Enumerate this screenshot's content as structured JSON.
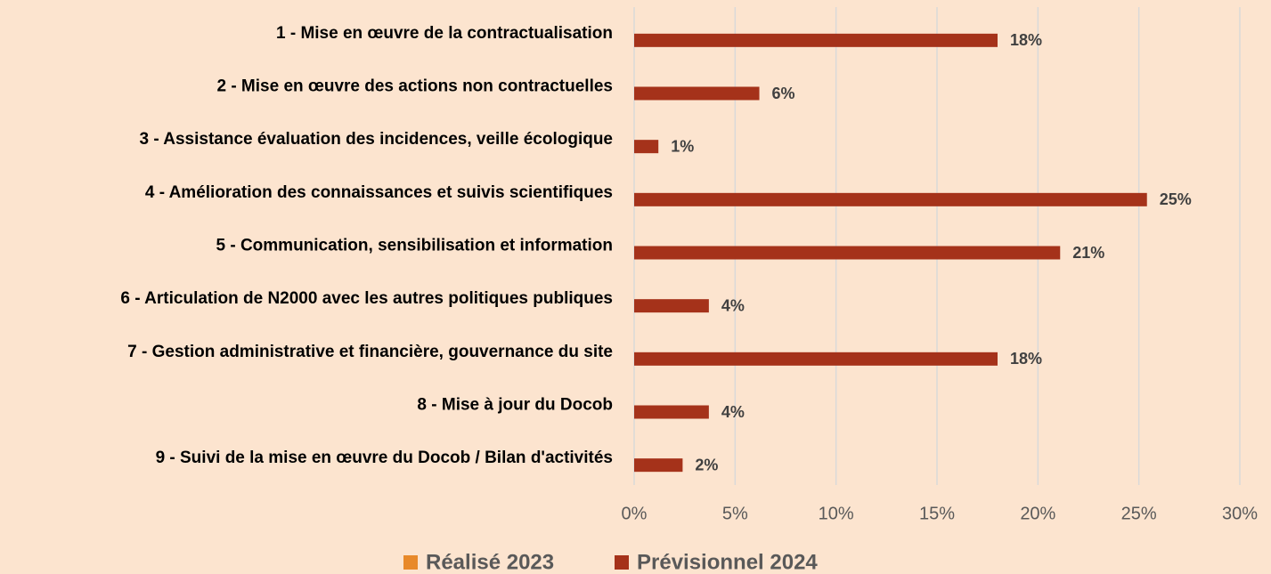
{
  "chart_data": {
    "type": "bar",
    "orientation": "horizontal",
    "categories": [
      "1 - Mise en œuvre de la contractualisation",
      "2 - Mise en œuvre des actions non contractuelles",
      "3 - Assistance évaluation des incidences, veille écologique",
      "4 - Amélioration des connaissances et suivis scientifiques",
      "5 - Communication, sensibilisation et information",
      "6 - Articulation de N2000 avec les autres politiques publiques",
      "7 - Gestion administrative et financière, gouvernance du site",
      "8 - Mise à jour du Docob",
      "9 - Suivi de la mise en œuvre du Docob / Bilan d'activités"
    ],
    "series": [
      {
        "name": "Réalisé 2023",
        "color": "#e8892a",
        "values": [
          null,
          null,
          null,
          null,
          null,
          null,
          null,
          null,
          null
        ]
      },
      {
        "name": "Prévisionnel 2024",
        "color": "#a5321a",
        "values": [
          18,
          6.2,
          1.2,
          25.4,
          21.1,
          3.7,
          18,
          3.7,
          2.4
        ],
        "value_labels": [
          "18%",
          "6%",
          "1%",
          "25%",
          "21%",
          "4%",
          "18%",
          "4%",
          "2%"
        ]
      }
    ],
    "xlim": [
      0,
      30
    ],
    "xticks": [
      {
        "value": 0,
        "label": "0%"
      },
      {
        "value": 5,
        "label": "5%"
      },
      {
        "value": 10,
        "label": "10%"
      },
      {
        "value": 15,
        "label": "15%"
      },
      {
        "value": 20,
        "label": "20%"
      },
      {
        "value": 25,
        "label": "25%"
      },
      {
        "value": 30,
        "label": "30%"
      }
    ],
    "grid": true,
    "legend": "bottom"
  }
}
